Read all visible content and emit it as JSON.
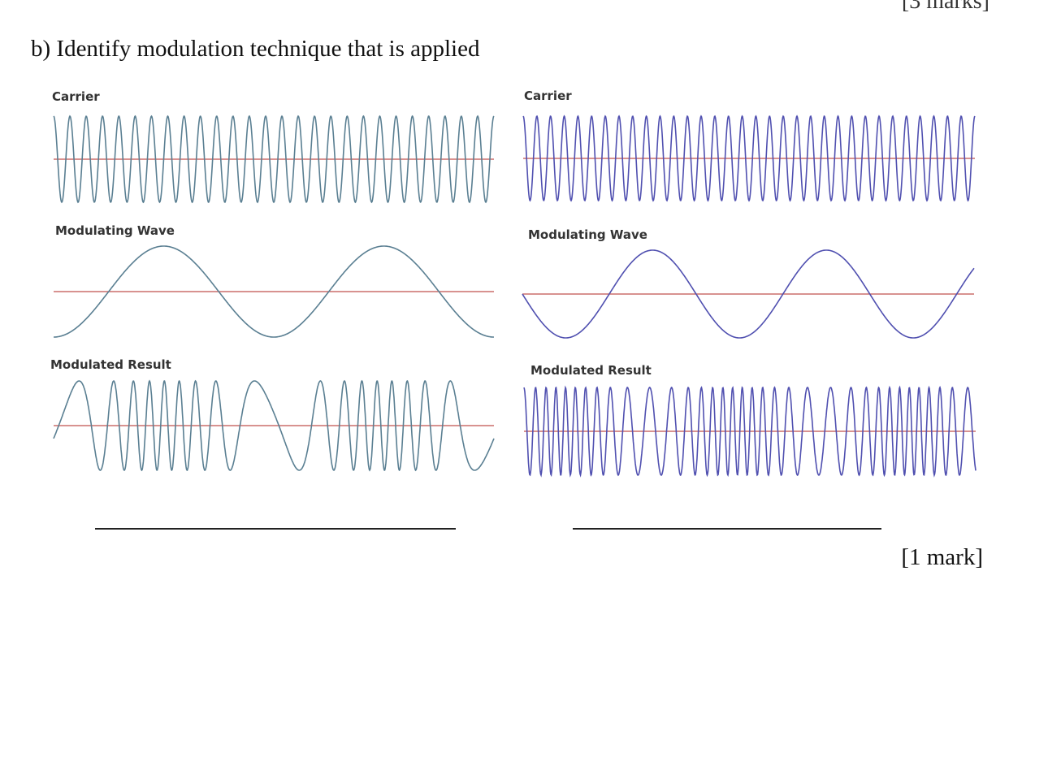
{
  "header": {
    "top_mark_partial": "[3 marks]"
  },
  "question": {
    "text": "b) Identify modulation technique that is applied"
  },
  "left_panel": {
    "carrier_label": "Carrier",
    "modulating_label": "Modulating Wave",
    "result_label": "Modulated Result",
    "wave_color": "#5a7f92",
    "axis_color": "#c0504d"
  },
  "right_panel": {
    "carrier_label": "Carrier",
    "modulating_label": "Modulating Wave",
    "result_label": "Modulated Result",
    "wave_color": "#5050b0",
    "axis_color": "#c0504d"
  },
  "answers": {
    "left_answer": "",
    "right_answer": ""
  },
  "footer": {
    "mark": "[1 mark]"
  }
}
